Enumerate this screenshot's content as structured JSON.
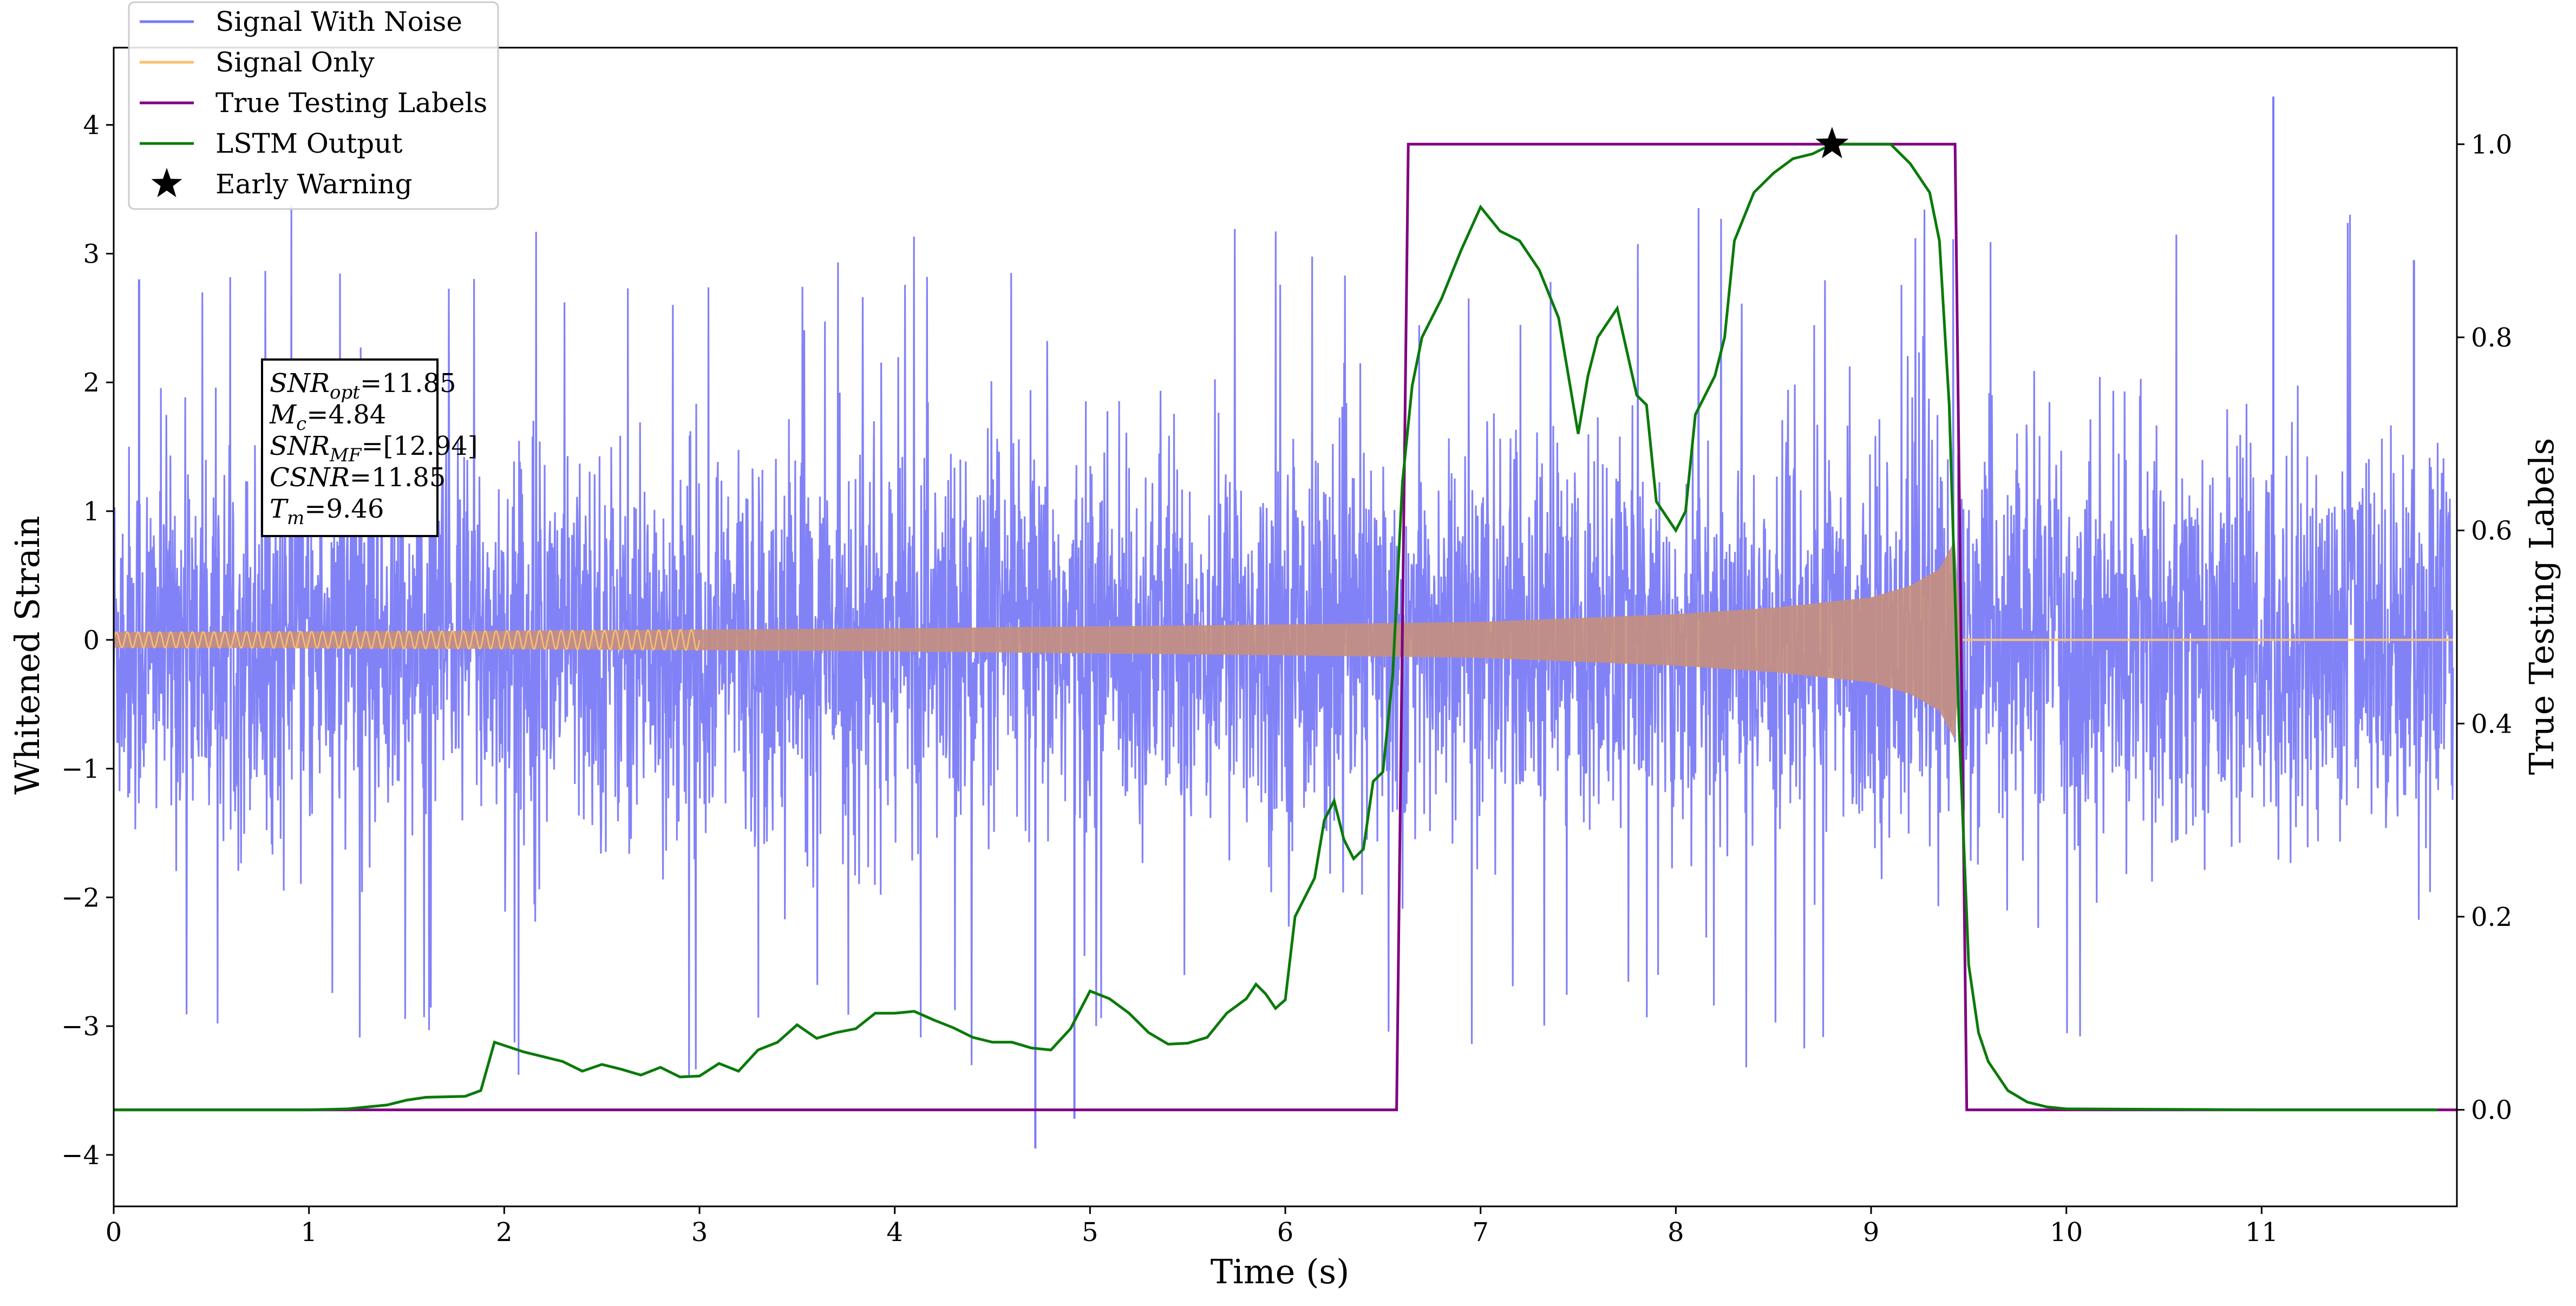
{
  "chart_data": {
    "type": "line",
    "title": "",
    "xlabel": "Time (s)",
    "ylabel": "Whitened Strain",
    "ylabel_right": "True Testing Labels",
    "xlim": [
      0,
      12
    ],
    "ylim": [
      -4.4,
      4.6
    ],
    "ylim_right": [
      -0.1,
      1.1
    ],
    "x_ticks": [
      0,
      1,
      2,
      3,
      4,
      5,
      6,
      7,
      8,
      9,
      10,
      11
    ],
    "y_ticks": [
      -4,
      -3,
      -2,
      -1,
      0,
      1,
      2,
      3,
      4
    ],
    "y_ticks_right": [
      "0.0",
      "0.2",
      "0.4",
      "0.6",
      "0.8",
      "1.0"
    ],
    "grid": false,
    "legend_position": "top-left",
    "series": [
      {
        "name": "Signal With Noise",
        "axis": "left",
        "color": "#7b7bf7",
        "style": "dense noise, roughly Gaussian, amplitude about ±2 with spikes up to about ±4",
        "notable_points": [
          [
            4.72,
            -3.95
          ],
          [
            4.92,
            -3.72
          ],
          [
            11.06,
            4.22
          ],
          [
            0.13,
            2.8
          ],
          [
            11.78,
            2.95
          ]
        ]
      },
      {
        "name": "Signal Only",
        "axis": "left",
        "color": "#fdbf6f",
        "style": "chirp oscillation whose envelope grows to merger, then zero",
        "envelope": [
          [
            0.0,
            0.06
          ],
          [
            2.0,
            0.07
          ],
          [
            4.0,
            0.09
          ],
          [
            6.0,
            0.12
          ],
          [
            7.0,
            0.14
          ],
          [
            8.0,
            0.2
          ],
          [
            8.5,
            0.25
          ],
          [
            9.0,
            0.33
          ],
          [
            9.2,
            0.42
          ],
          [
            9.35,
            0.55
          ],
          [
            9.43,
            0.78
          ],
          [
            9.46,
            0.0
          ],
          [
            12.0,
            0.0
          ]
        ]
      },
      {
        "name": "True Testing Labels",
        "axis": "right",
        "color": "#800080",
        "x": [
          0.0,
          6.57,
          6.63,
          9.43,
          9.49,
          12.0
        ],
        "y": [
          0,
          0,
          1,
          1,
          0,
          0
        ]
      },
      {
        "name": "LSTM Output",
        "axis": "right",
        "color": "#0a7a0a",
        "x": [
          0,
          1.0,
          1.2,
          1.4,
          1.5,
          1.6,
          1.8,
          1.88,
          1.95,
          2.1,
          2.2,
          2.3,
          2.4,
          2.5,
          2.6,
          2.7,
          2.8,
          2.9,
          3.0,
          3.1,
          3.2,
          3.3,
          3.4,
          3.5,
          3.6,
          3.7,
          3.8,
          3.9,
          4.0,
          4.1,
          4.2,
          4.3,
          4.4,
          4.5,
          4.6,
          4.7,
          4.8,
          4.9,
          5.0,
          5.1,
          5.2,
          5.3,
          5.4,
          5.5,
          5.6,
          5.7,
          5.8,
          5.85,
          5.9,
          5.95,
          6.0,
          6.05,
          6.1,
          6.15,
          6.2,
          6.25,
          6.3,
          6.35,
          6.4,
          6.45,
          6.5,
          6.55,
          6.6,
          6.65,
          6.7,
          6.8,
          6.9,
          7.0,
          7.1,
          7.2,
          7.3,
          7.4,
          7.45,
          7.5,
          7.55,
          7.6,
          7.7,
          7.8,
          7.85,
          7.9,
          8.0,
          8.05,
          8.1,
          8.2,
          8.25,
          8.3,
          8.4,
          8.5,
          8.6,
          8.7,
          8.8,
          8.9,
          9.0,
          9.1,
          9.15,
          9.2,
          9.3,
          9.35,
          9.4,
          9.45,
          9.5,
          9.55,
          9.6,
          9.7,
          9.8,
          9.9,
          10.0,
          11.0,
          11.9
        ],
        "y": [
          0,
          0,
          0.001,
          0.005,
          0.01,
          0.013,
          0.014,
          0.02,
          0.07,
          0.06,
          0.055,
          0.05,
          0.04,
          0.047,
          0.042,
          0.036,
          0.044,
          0.034,
          0.035,
          0.048,
          0.04,
          0.062,
          0.07,
          0.088,
          0.074,
          0.08,
          0.084,
          0.1,
          0.1,
          0.102,
          0.093,
          0.085,
          0.075,
          0.07,
          0.07,
          0.064,
          0.062,
          0.084,
          0.123,
          0.115,
          0.1,
          0.08,
          0.068,
          0.069,
          0.075,
          0.1,
          0.115,
          0.13,
          0.12,
          0.105,
          0.114,
          0.2,
          0.22,
          0.24,
          0.3,
          0.32,
          0.28,
          0.26,
          0.27,
          0.34,
          0.35,
          0.45,
          0.65,
          0.75,
          0.8,
          0.84,
          0.89,
          0.935,
          0.91,
          0.9,
          0.87,
          0.82,
          0.76,
          0.7,
          0.76,
          0.8,
          0.83,
          0.74,
          0.73,
          0.63,
          0.6,
          0.62,
          0.72,
          0.76,
          0.8,
          0.9,
          0.95,
          0.97,
          0.985,
          0.99,
          1.0,
          1.0,
          1.0,
          1.0,
          0.99,
          0.98,
          0.95,
          0.9,
          0.73,
          0.4,
          0.15,
          0.08,
          0.05,
          0.02,
          0.008,
          0.003,
          0.001,
          0.0,
          0.0
        ]
      },
      {
        "name": "Early Warning",
        "axis": "right",
        "color": "#000000",
        "marker": "star",
        "x": [
          8.8
        ],
        "y": [
          1.0
        ]
      }
    ],
    "annotation": {
      "lines": [
        {
          "label": "SNR",
          "sub": "opt",
          "value": "=11.85"
        },
        {
          "label": "M",
          "sub": "c",
          "value": "=4.84"
        },
        {
          "label": "SNR",
          "sub": "MF",
          "value": "=[12.94]"
        },
        {
          "label": "CSNR",
          "sub": "",
          "value": "=11.85"
        },
        {
          "label": "T",
          "sub": "m",
          "value": "=9.46"
        }
      ]
    }
  }
}
